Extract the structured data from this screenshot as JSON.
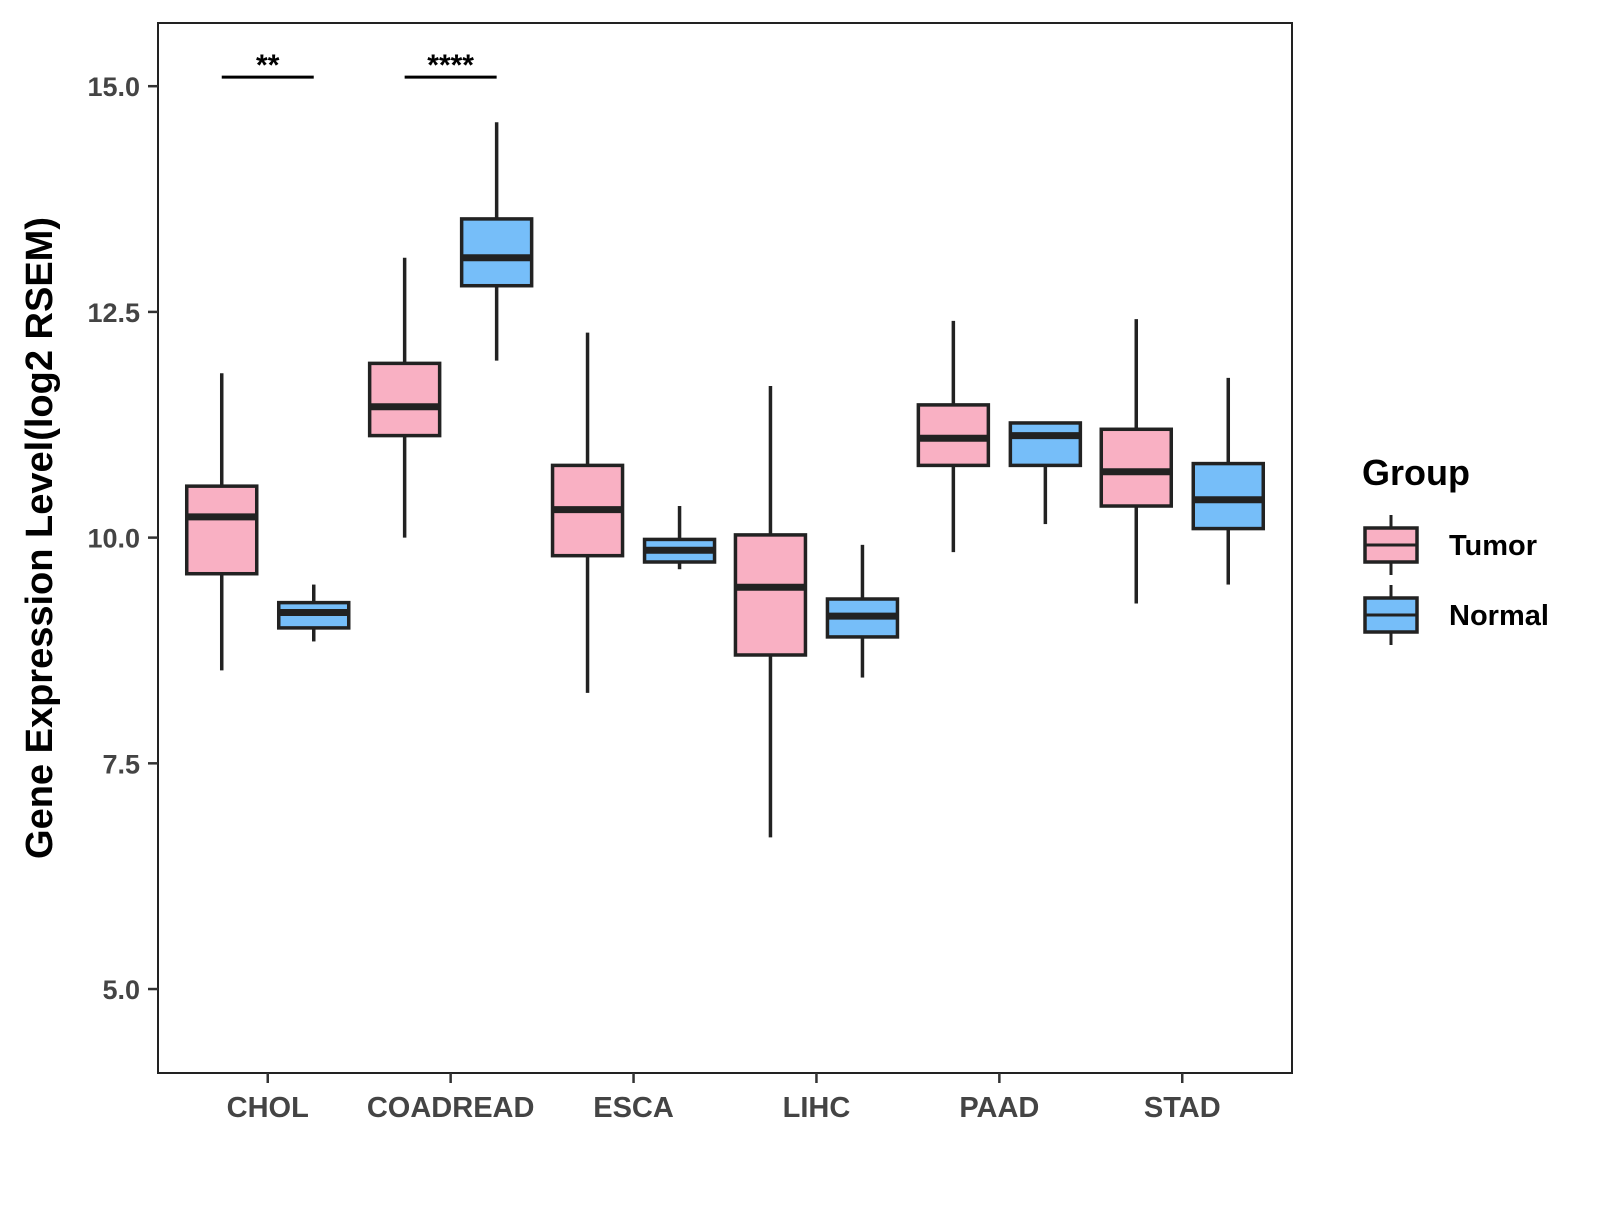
{
  "chart_data": {
    "type": "boxplot",
    "title": "",
    "xlabel": "",
    "ylabel": "Gene Expression Level(log2 RSEM)",
    "ylim": [
      4.07,
      15.7
    ],
    "yticks": [
      5.0,
      7.5,
      10.0,
      12.5,
      15.0
    ],
    "ytick_labels": [
      "5.0",
      "7.5",
      "10.0",
      "12.5",
      "15.0"
    ],
    "grid": false,
    "legend_position": "right",
    "categories": [
      "CHOL",
      "COADREAD",
      "ESCA",
      "LIHC",
      "PAAD",
      "STAD"
    ],
    "groups": [
      {
        "name": "Tumor",
        "color": "#f9b0c3"
      },
      {
        "name": "Normal",
        "color": "#76bef9"
      }
    ],
    "legend": {
      "title": "Group",
      "entries": [
        "Tumor",
        "Normal"
      ]
    },
    "series": [
      {
        "name": "Tumor",
        "boxes": [
          {
            "category": "CHOL",
            "min": 8.53,
            "q1": 9.6,
            "median": 10.23,
            "q3": 10.57,
            "max": 11.82
          },
          {
            "category": "COADREAD",
            "min": 10.0,
            "q1": 11.13,
            "median": 11.45,
            "q3": 11.93,
            "max": 13.1
          },
          {
            "category": "ESCA",
            "min": 8.28,
            "q1": 9.8,
            "median": 10.31,
            "q3": 10.8,
            "max": 12.27
          },
          {
            "category": "LIHC",
            "min": 6.68,
            "q1": 8.7,
            "median": 9.45,
            "q3": 10.03,
            "max": 11.68
          },
          {
            "category": "PAAD",
            "min": 9.84,
            "q1": 10.8,
            "median": 11.1,
            "q3": 11.47,
            "max": 12.4
          },
          {
            "category": "STAD",
            "min": 9.27,
            "q1": 10.35,
            "median": 10.73,
            "q3": 11.2,
            "max": 12.42
          }
        ]
      },
      {
        "name": "Normal",
        "boxes": [
          {
            "category": "CHOL",
            "min": 8.85,
            "q1": 9.0,
            "median": 9.17,
            "q3": 9.28,
            "max": 9.48
          },
          {
            "category": "COADREAD",
            "min": 11.96,
            "q1": 12.79,
            "median": 13.1,
            "q3": 13.53,
            "max": 14.6
          },
          {
            "category": "ESCA",
            "min": 9.65,
            "q1": 9.73,
            "median": 9.86,
            "q3": 9.98,
            "max": 10.35
          },
          {
            "category": "LIHC",
            "min": 8.45,
            "q1": 8.9,
            "median": 9.13,
            "q3": 9.32,
            "max": 9.92
          },
          {
            "category": "PAAD",
            "min": 10.15,
            "q1": 10.8,
            "median": 11.13,
            "q3": 11.27,
            "max": 11.27
          },
          {
            "category": "STAD",
            "min": 9.48,
            "q1": 10.1,
            "median": 10.42,
            "q3": 10.82,
            "max": 11.77
          }
        ]
      }
    ],
    "annotations": [
      {
        "category": "CHOL",
        "text": "**",
        "y": 15.1
      },
      {
        "category": "COADREAD",
        "text": "****",
        "y": 15.1
      }
    ]
  }
}
